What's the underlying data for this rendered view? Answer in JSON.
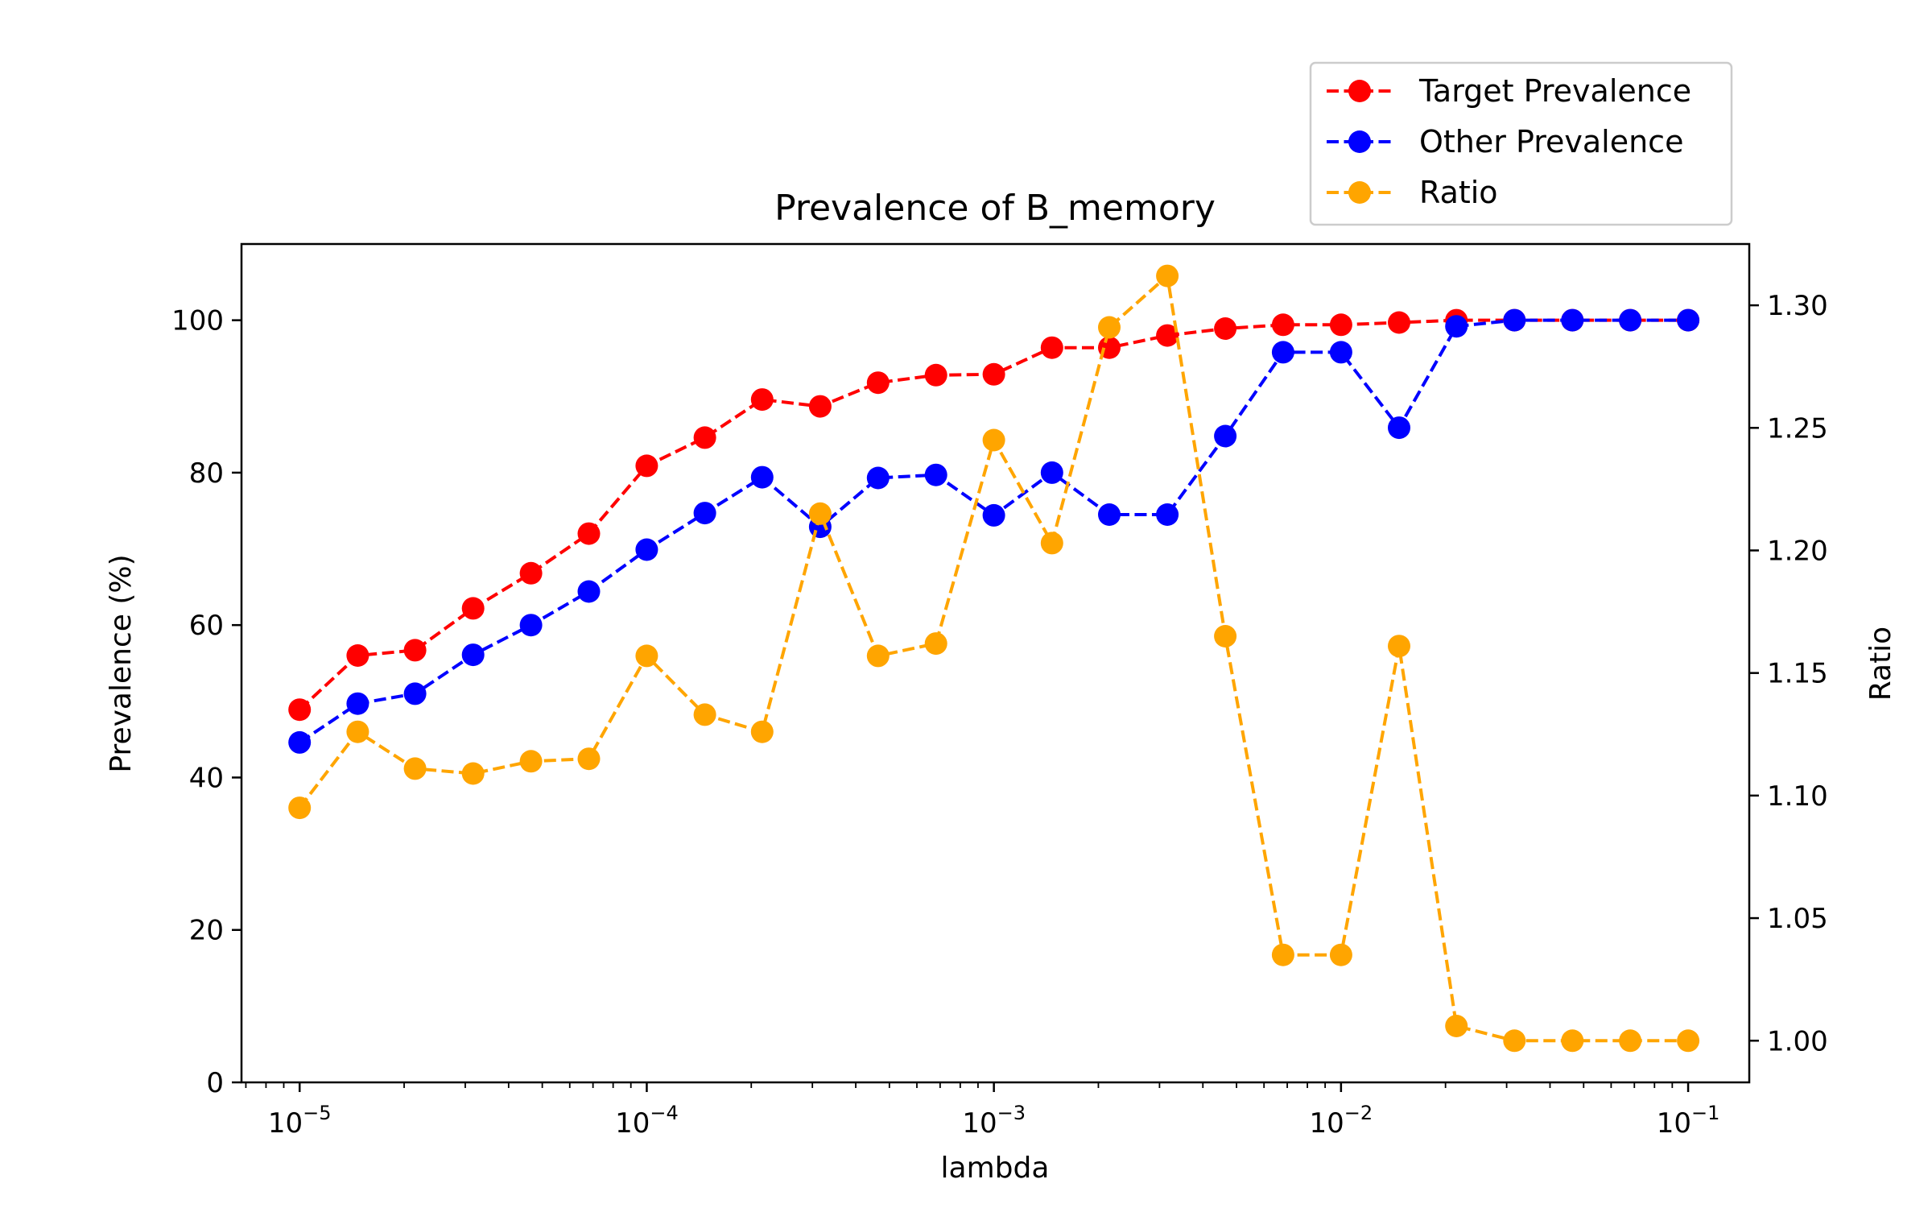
{
  "chart_data": {
    "type": "line",
    "title": "Prevalence of B_memory",
    "xlabel": "lambda",
    "ylabel_left": "Prevalence (%)",
    "ylabel_right": "Ratio",
    "x_scale": "log",
    "xlim": [
      6.8e-06,
      0.15
    ],
    "ylim_left": [
      0,
      110
    ],
    "ylim_right": [
      0.983,
      1.325
    ],
    "x_ticks": [
      {
        "value": 1e-05,
        "base": "10",
        "exp": "−5"
      },
      {
        "value": 0.0001,
        "base": "10",
        "exp": "−4"
      },
      {
        "value": 0.001,
        "base": "10",
        "exp": "−3"
      },
      {
        "value": 0.01,
        "base": "10",
        "exp": "−2"
      },
      {
        "value": 0.1,
        "base": "10",
        "exp": "−1"
      }
    ],
    "y_ticks_left": [
      "0",
      "20",
      "40",
      "60",
      "80",
      "100"
    ],
    "y_ticks_right": [
      "1.00",
      "1.05",
      "1.10",
      "1.15",
      "1.20",
      "1.25",
      "1.30"
    ],
    "grid": false,
    "legend_position": "top-right, above plot",
    "x": [
      1e-05,
      1.47e-05,
      2.15e-05,
      3.16e-05,
      4.64e-05,
      6.81e-05,
      0.0001,
      0.000147,
      0.000215,
      0.000316,
      0.000464,
      0.000681,
      0.001,
      0.00147,
      0.00215,
      0.00316,
      0.00464,
      0.00681,
      0.01,
      0.0147,
      0.0215,
      0.0316,
      0.0464,
      0.0681,
      0.1
    ],
    "series": [
      {
        "name": "Target Prevalence",
        "axis": "left",
        "color": "#ff0000",
        "values": [
          48.9,
          56.0,
          56.7,
          62.2,
          66.8,
          72.0,
          80.9,
          84.6,
          89.6,
          88.7,
          91.8,
          92.8,
          92.9,
          96.4,
          96.4,
          98.0,
          98.9,
          99.4,
          99.4,
          99.7,
          100.0,
          100.0,
          100.0,
          100.0,
          100.0
        ]
      },
      {
        "name": "Other Prevalence",
        "axis": "left",
        "color": "#0000ff",
        "values": [
          44.6,
          49.7,
          51.0,
          56.1,
          60.0,
          64.4,
          69.9,
          74.7,
          79.4,
          72.9,
          79.3,
          79.7,
          74.4,
          80.0,
          74.5,
          74.5,
          84.8,
          95.8,
          95.8,
          85.9,
          99.2,
          100.0,
          100.0,
          100.0,
          100.0
        ]
      },
      {
        "name": "Ratio",
        "axis": "right",
        "color": "#ffa500",
        "values": [
          1.095,
          1.126,
          1.111,
          1.109,
          1.114,
          1.115,
          1.157,
          1.133,
          1.126,
          1.215,
          1.157,
          1.162,
          1.245,
          1.203,
          1.291,
          1.312,
          1.165,
          1.035,
          1.035,
          1.161,
          1.006,
          1.0,
          1.0,
          1.0,
          1.0
        ]
      }
    ]
  }
}
